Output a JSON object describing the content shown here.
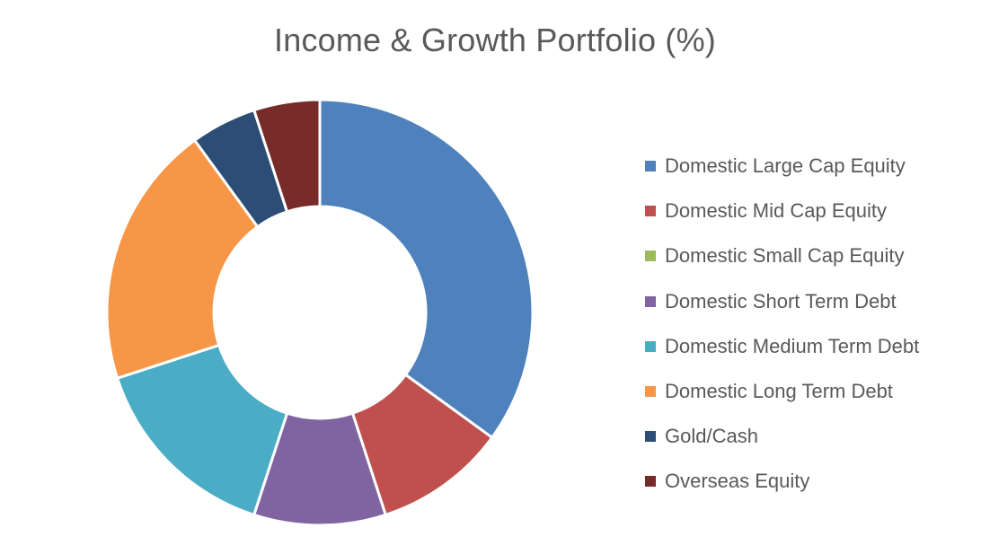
{
  "chart_data": {
    "type": "pie",
    "variant": "donut",
    "title": "Income & Growth Portfolio (%)",
    "legend_position": "right",
    "series": [
      {
        "name": "Domestic Large Cap Equity",
        "value": 35,
        "color": "#4F81BD"
      },
      {
        "name": "Domestic Mid Cap Equity",
        "value": 10,
        "color": "#C0504D"
      },
      {
        "name": "Domestic Small Cap Equity",
        "value": 0,
        "color": "#9BBB59"
      },
      {
        "name": "Domestic Short Term Debt",
        "value": 10,
        "color": "#8064A2"
      },
      {
        "name": "Domestic Medium Term Debt",
        "value": 15,
        "color": "#4BACC6"
      },
      {
        "name": "Domestic Long Term Debt",
        "value": 20,
        "color": "#F79646"
      },
      {
        "name": "Gold/Cash",
        "value": 5,
        "color": "#2C4D75"
      },
      {
        "name": "Overseas Equity",
        "value": 5,
        "color": "#772C2A"
      }
    ]
  }
}
